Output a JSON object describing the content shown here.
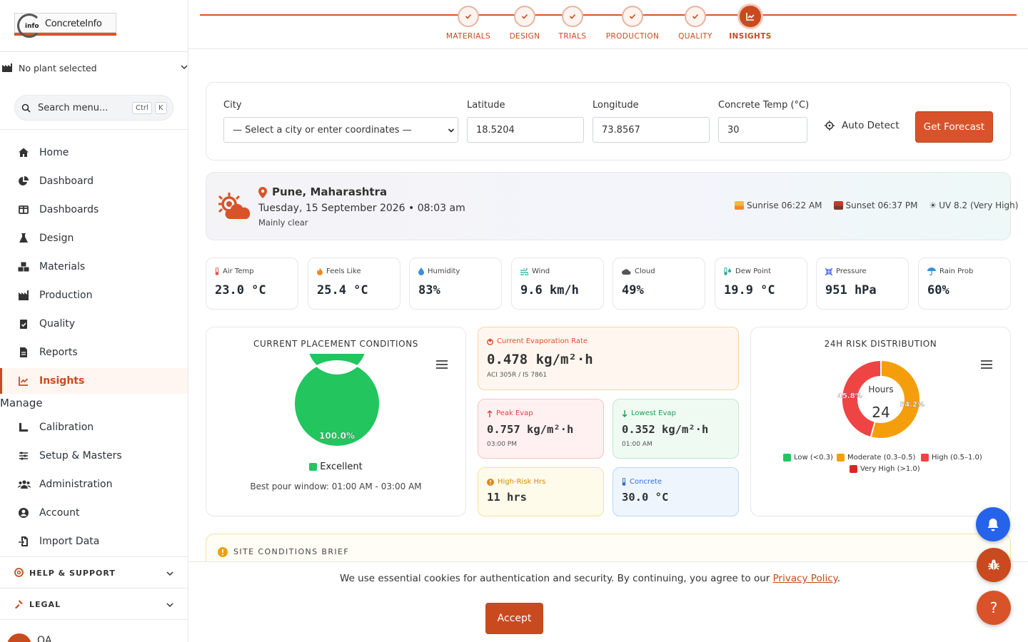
{
  "app": {
    "logo_text": "ConcreteInfo",
    "logo_badge": "info"
  },
  "sidebar": {
    "plant_label": "No plant selected",
    "search_placeholder": "Search menu...",
    "kbd_ctrl": "Ctrl",
    "kbd_k": "K",
    "items": [
      {
        "label": "Home",
        "icon": "home-icon"
      },
      {
        "label": "Dashboard",
        "icon": "pie-chart-icon"
      },
      {
        "label": "Dashboards",
        "icon": "columns-icon"
      },
      {
        "label": "Design",
        "icon": "flask-icon"
      },
      {
        "label": "Materials",
        "icon": "cubes-icon"
      },
      {
        "label": "Production",
        "icon": "factory-icon"
      },
      {
        "label": "Quality",
        "icon": "clipboard-check-icon"
      },
      {
        "label": "Reports",
        "icon": "document-icon"
      },
      {
        "label": "Insights",
        "icon": "line-chart-icon"
      }
    ],
    "manage_title": "Manage",
    "manage_items": [
      {
        "label": "Calibration",
        "icon": "ruler-icon"
      },
      {
        "label": "Setup & Masters",
        "icon": "sliders-icon"
      },
      {
        "label": "Administration",
        "icon": "users-icon"
      },
      {
        "label": "Account",
        "icon": "user-circle-icon"
      },
      {
        "label": "Import Data",
        "icon": "file-import-icon"
      }
    ],
    "help_label": "HELP & SUPPORT",
    "legal_label": "LEGAL",
    "user_name": "QA"
  },
  "stepper": {
    "steps": [
      "MATERIALS",
      "DESIGN",
      "TRIALS",
      "PRODUCTION",
      "QUALITY",
      "INSIGHTS"
    ],
    "current": "INSIGHTS"
  },
  "form": {
    "city_label": "City",
    "city_value": "— Select a city or enter coordinates —",
    "lat_label": "Latitude",
    "lat_value": "18.5204",
    "lon_label": "Longitude",
    "lon_value": "73.8567",
    "temp_label": "Concrete Temp (°C)",
    "temp_value": "30",
    "auto_detect": "Auto Detect",
    "get_forecast": "Get Forecast"
  },
  "location": {
    "name": "Pune, Maharashtra",
    "datetime": "Tuesday, 15 September 2026 • 08:03 am",
    "condition": "Mainly clear",
    "sunrise": "Sunrise 06:22 AM",
    "sunset": "Sunset 06:37 PM",
    "uv": "UV 8.2 (Very High)"
  },
  "metrics": [
    {
      "label": "Air Temp",
      "value": "23.0 °C",
      "icon": "thermometer-icon",
      "color": "#e05a5a"
    },
    {
      "label": "Feels Like",
      "value": "25.4 °C",
      "icon": "flame-icon",
      "color": "#f08a24"
    },
    {
      "label": "Humidity",
      "value": "83%",
      "icon": "droplet-icon",
      "color": "#3b8fd9"
    },
    {
      "label": "Wind",
      "value": "9.6 km/h",
      "icon": "wind-icon",
      "color": "#26a69a"
    },
    {
      "label": "Cloud",
      "value": "49%",
      "icon": "cloud-icon",
      "color": "#555555"
    },
    {
      "label": "Dew Point",
      "value": "19.9 °C",
      "icon": "dew-icon",
      "color": "#26a69a"
    },
    {
      "label": "Pressure",
      "value": "951 hPa",
      "icon": "compress-icon",
      "color": "#4a6cf7"
    },
    {
      "label": "Rain Prob",
      "value": "60%",
      "icon": "umbrella-icon",
      "color": "#3b8fd9"
    }
  ],
  "placement": {
    "title": "CURRENT PLACEMENT CONDITIONS",
    "donut_label": "100.0%",
    "status": "Excellent",
    "best_window": "Best pour window: 01:00 AM - 03:00 AM"
  },
  "evaporation": {
    "current_label": "Current Evaporation Rate",
    "current_value": "0.478 kg/m²·h",
    "current_ref": "ACI 305R / IS 7861",
    "peak_label": "Peak Evap",
    "peak_value": "0.757 kg/m²·h",
    "peak_time": "03:00 PM",
    "lowest_label": "Lowest Evap",
    "lowest_value": "0.352 kg/m²·h",
    "lowest_time": "01:00 AM",
    "high_risk_label": "High-Risk Hrs",
    "high_risk_value": "11 hrs",
    "concrete_label": "Concrete",
    "concrete_value": "30.0 °C"
  },
  "risk": {
    "title": "24H RISK DISTRIBUTION",
    "center_label": "Hours",
    "center_value": "24",
    "legend": [
      "Low (<0.3)",
      "Moderate (0.3–0.5)",
      "High (0.5–1.0)",
      "Very High (>1.0)"
    ]
  },
  "chart_data": [
    {
      "type": "pie",
      "title": "CURRENT PLACEMENT CONDITIONS",
      "categories": [
        "Excellent"
      ],
      "values": [
        100.0
      ],
      "colors": [
        "#22c55e"
      ]
    },
    {
      "type": "pie",
      "title": "24H RISK DISTRIBUTION",
      "categories": [
        "Moderate (0.3–0.5)",
        "High (0.5–1.0)"
      ],
      "values": [
        54.2,
        45.8
      ],
      "labels": [
        "54.2%",
        "45.8%"
      ],
      "colors": [
        "#f59e0b",
        "#ef4444"
      ],
      "legend": [
        "Low (<0.3)",
        "Moderate (0.3–0.5)",
        "High (0.5–1.0)",
        "Very High (>1.0)"
      ],
      "legend_colors": [
        "#22c55e",
        "#f59e0b",
        "#ef4444",
        "#dc2626"
      ]
    }
  ],
  "brief": {
    "title": "SITE CONDITIONS BRIEF"
  },
  "cookie": {
    "message": "We use essential cookies for authentication and security. By continuing, you agree to our ",
    "link": "Privacy Policy",
    "period": ".",
    "accept": "Accept"
  },
  "colors": {
    "brand": "#c94a1e",
    "accent": "#d9532a"
  }
}
